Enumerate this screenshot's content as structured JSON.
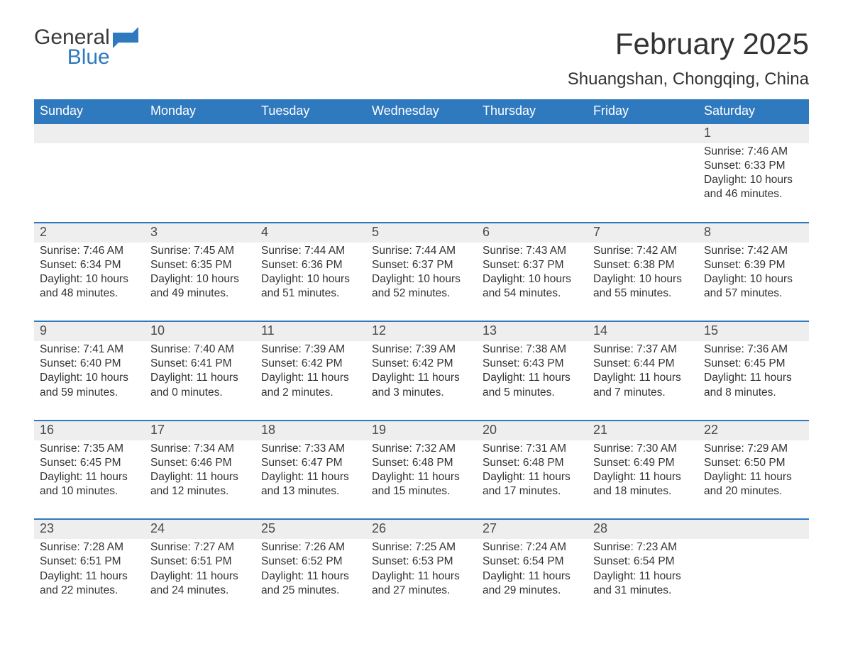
{
  "logo": {
    "line1": "General",
    "line2": "Blue"
  },
  "title": "February 2025",
  "location": "Shuangshan, Chongqing, China",
  "colors": {
    "header_bg": "#2f79bf",
    "header_text": "#ffffff",
    "daynum_bg": "#eeeeee",
    "row_divider": "#2f79bf",
    "body_text": "#333333",
    "logo_general": "#3a3a3a",
    "logo_blue": "#2f79bf",
    "page_bg": "#ffffff"
  },
  "typography": {
    "title_fontsize_pt": 32,
    "location_fontsize_pt": 18,
    "weekday_fontsize_pt": 14,
    "daynum_fontsize_pt": 14,
    "details_fontsize_pt": 12,
    "logo_fontsize_pt": 22
  },
  "weekdays": [
    "Sunday",
    "Monday",
    "Tuesday",
    "Wednesday",
    "Thursday",
    "Friday",
    "Saturday"
  ],
  "weeks": [
    [
      {
        "day": "",
        "sunrise": "",
        "sunset": "",
        "daylight": ""
      },
      {
        "day": "",
        "sunrise": "",
        "sunset": "",
        "daylight": ""
      },
      {
        "day": "",
        "sunrise": "",
        "sunset": "",
        "daylight": ""
      },
      {
        "day": "",
        "sunrise": "",
        "sunset": "",
        "daylight": ""
      },
      {
        "day": "",
        "sunrise": "",
        "sunset": "",
        "daylight": ""
      },
      {
        "day": "",
        "sunrise": "",
        "sunset": "",
        "daylight": ""
      },
      {
        "day": "1",
        "sunrise": "Sunrise: 7:46 AM",
        "sunset": "Sunset: 6:33 PM",
        "daylight": "Daylight: 10 hours and 46 minutes."
      }
    ],
    [
      {
        "day": "2",
        "sunrise": "Sunrise: 7:46 AM",
        "sunset": "Sunset: 6:34 PM",
        "daylight": "Daylight: 10 hours and 48 minutes."
      },
      {
        "day": "3",
        "sunrise": "Sunrise: 7:45 AM",
        "sunset": "Sunset: 6:35 PM",
        "daylight": "Daylight: 10 hours and 49 minutes."
      },
      {
        "day": "4",
        "sunrise": "Sunrise: 7:44 AM",
        "sunset": "Sunset: 6:36 PM",
        "daylight": "Daylight: 10 hours and 51 minutes."
      },
      {
        "day": "5",
        "sunrise": "Sunrise: 7:44 AM",
        "sunset": "Sunset: 6:37 PM",
        "daylight": "Daylight: 10 hours and 52 minutes."
      },
      {
        "day": "6",
        "sunrise": "Sunrise: 7:43 AM",
        "sunset": "Sunset: 6:37 PM",
        "daylight": "Daylight: 10 hours and 54 minutes."
      },
      {
        "day": "7",
        "sunrise": "Sunrise: 7:42 AM",
        "sunset": "Sunset: 6:38 PM",
        "daylight": "Daylight: 10 hours and 55 minutes."
      },
      {
        "day": "8",
        "sunrise": "Sunrise: 7:42 AM",
        "sunset": "Sunset: 6:39 PM",
        "daylight": "Daylight: 10 hours and 57 minutes."
      }
    ],
    [
      {
        "day": "9",
        "sunrise": "Sunrise: 7:41 AM",
        "sunset": "Sunset: 6:40 PM",
        "daylight": "Daylight: 10 hours and 59 minutes."
      },
      {
        "day": "10",
        "sunrise": "Sunrise: 7:40 AM",
        "sunset": "Sunset: 6:41 PM",
        "daylight": "Daylight: 11 hours and 0 minutes."
      },
      {
        "day": "11",
        "sunrise": "Sunrise: 7:39 AM",
        "sunset": "Sunset: 6:42 PM",
        "daylight": "Daylight: 11 hours and 2 minutes."
      },
      {
        "day": "12",
        "sunrise": "Sunrise: 7:39 AM",
        "sunset": "Sunset: 6:42 PM",
        "daylight": "Daylight: 11 hours and 3 minutes."
      },
      {
        "day": "13",
        "sunrise": "Sunrise: 7:38 AM",
        "sunset": "Sunset: 6:43 PM",
        "daylight": "Daylight: 11 hours and 5 minutes."
      },
      {
        "day": "14",
        "sunrise": "Sunrise: 7:37 AM",
        "sunset": "Sunset: 6:44 PM",
        "daylight": "Daylight: 11 hours and 7 minutes."
      },
      {
        "day": "15",
        "sunrise": "Sunrise: 7:36 AM",
        "sunset": "Sunset: 6:45 PM",
        "daylight": "Daylight: 11 hours and 8 minutes."
      }
    ],
    [
      {
        "day": "16",
        "sunrise": "Sunrise: 7:35 AM",
        "sunset": "Sunset: 6:45 PM",
        "daylight": "Daylight: 11 hours and 10 minutes."
      },
      {
        "day": "17",
        "sunrise": "Sunrise: 7:34 AM",
        "sunset": "Sunset: 6:46 PM",
        "daylight": "Daylight: 11 hours and 12 minutes."
      },
      {
        "day": "18",
        "sunrise": "Sunrise: 7:33 AM",
        "sunset": "Sunset: 6:47 PM",
        "daylight": "Daylight: 11 hours and 13 minutes."
      },
      {
        "day": "19",
        "sunrise": "Sunrise: 7:32 AM",
        "sunset": "Sunset: 6:48 PM",
        "daylight": "Daylight: 11 hours and 15 minutes."
      },
      {
        "day": "20",
        "sunrise": "Sunrise: 7:31 AM",
        "sunset": "Sunset: 6:48 PM",
        "daylight": "Daylight: 11 hours and 17 minutes."
      },
      {
        "day": "21",
        "sunrise": "Sunrise: 7:30 AM",
        "sunset": "Sunset: 6:49 PM",
        "daylight": "Daylight: 11 hours and 18 minutes."
      },
      {
        "day": "22",
        "sunrise": "Sunrise: 7:29 AM",
        "sunset": "Sunset: 6:50 PM",
        "daylight": "Daylight: 11 hours and 20 minutes."
      }
    ],
    [
      {
        "day": "23",
        "sunrise": "Sunrise: 7:28 AM",
        "sunset": "Sunset: 6:51 PM",
        "daylight": "Daylight: 11 hours and 22 minutes."
      },
      {
        "day": "24",
        "sunrise": "Sunrise: 7:27 AM",
        "sunset": "Sunset: 6:51 PM",
        "daylight": "Daylight: 11 hours and 24 minutes."
      },
      {
        "day": "25",
        "sunrise": "Sunrise: 7:26 AM",
        "sunset": "Sunset: 6:52 PM",
        "daylight": "Daylight: 11 hours and 25 minutes."
      },
      {
        "day": "26",
        "sunrise": "Sunrise: 7:25 AM",
        "sunset": "Sunset: 6:53 PM",
        "daylight": "Daylight: 11 hours and 27 minutes."
      },
      {
        "day": "27",
        "sunrise": "Sunrise: 7:24 AM",
        "sunset": "Sunset: 6:54 PM",
        "daylight": "Daylight: 11 hours and 29 minutes."
      },
      {
        "day": "28",
        "sunrise": "Sunrise: 7:23 AM",
        "sunset": "Sunset: 6:54 PM",
        "daylight": "Daylight: 11 hours and 31 minutes."
      },
      {
        "day": "",
        "sunrise": "",
        "sunset": "",
        "daylight": ""
      }
    ]
  ]
}
